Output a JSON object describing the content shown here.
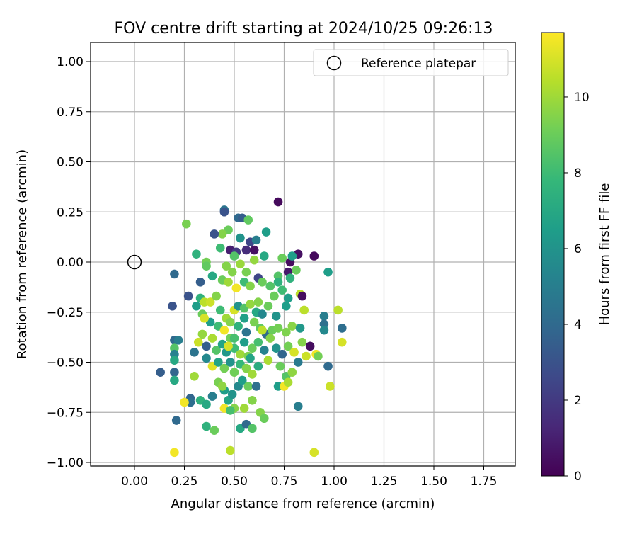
{
  "chart_data": {
    "type": "scatter",
    "title": "FOV centre drift starting at 2024/10/25 09:26:13",
    "xlabel": "Angular distance from reference (arcmin)",
    "ylabel": "Rotation from reference (arcmin)",
    "xlim": [
      -0.2,
      1.9
    ],
    "ylim": [
      -1.02,
      1.1
    ],
    "xticks": [
      "0.00",
      "0.25",
      "0.50",
      "0.75",
      "1.00",
      "1.25",
      "1.50",
      "1.75"
    ],
    "xtick_values": [
      0,
      0.25,
      0.5,
      0.75,
      1.0,
      1.25,
      1.5,
      1.75
    ],
    "yticks": [
      "1.00",
      "0.75",
      "0.50",
      "0.25",
      "0.00",
      "−0.25",
      "−0.50",
      "−0.75",
      "−1.00"
    ],
    "ytick_values": [
      1.0,
      0.75,
      0.5,
      0.25,
      0,
      -0.25,
      -0.5,
      -0.75,
      -1.0
    ],
    "grid": true,
    "legend": {
      "position": "top-right",
      "entries": [
        "Reference platepar"
      ]
    },
    "reference_point": {
      "x": 0,
      "y": 0,
      "label": "Reference platepar"
    },
    "colorbar": {
      "label": "Hours from first FF file",
      "range": [
        0,
        11.7
      ],
      "ticks": [
        "0",
        "2",
        "4",
        "6",
        "8",
        "10"
      ],
      "tick_values": [
        0,
        2,
        4,
        6,
        8,
        10
      ],
      "colormap": [
        "#440154",
        "#482878",
        "#3e4989",
        "#31688e",
        "#26828e",
        "#1f9e89",
        "#35b779",
        "#6ece58",
        "#b5de2b",
        "#fde725"
      ]
    },
    "points": [
      [
        0.72,
        0.3,
        0.3
      ],
      [
        0.45,
        0.26,
        4.5
      ],
      [
        0.45,
        0.25,
        3.0
      ],
      [
        0.52,
        0.22,
        4.0
      ],
      [
        0.54,
        0.22,
        3.5
      ],
      [
        0.57,
        0.21,
        8.8
      ],
      [
        0.26,
        0.19,
        9.3
      ],
      [
        0.47,
        0.16,
        9.0
      ],
      [
        0.44,
        0.14,
        9.5
      ],
      [
        0.66,
        0.15,
        6.5
      ],
      [
        0.4,
        0.14,
        3.0
      ],
      [
        0.53,
        0.12,
        6.0
      ],
      [
        0.58,
        0.1,
        2.5
      ],
      [
        0.61,
        0.11,
        5.0
      ],
      [
        0.43,
        0.07,
        8.0
      ],
      [
        0.48,
        0.06,
        1.0
      ],
      [
        0.51,
        0.05,
        2.0
      ],
      [
        0.56,
        0.06,
        1.5
      ],
      [
        0.6,
        0.06,
        0.5
      ],
      [
        0.31,
        0.04,
        7.5
      ],
      [
        0.5,
        0.03,
        8.5
      ],
      [
        0.65,
        0.03,
        7.0
      ],
      [
        0.74,
        0.02,
        9.0
      ],
      [
        0.78,
        0.0,
        0.4
      ],
      [
        0.77,
        -0.05,
        0.8
      ],
      [
        0.82,
        0.04,
        0.5
      ],
      [
        0.79,
        0.03,
        6.5
      ],
      [
        0.9,
        0.03,
        0.3
      ],
      [
        0.6,
        0.01,
        9.8
      ],
      [
        0.36,
        0.0,
        9.2
      ],
      [
        0.36,
        -0.02,
        8.8
      ],
      [
        0.46,
        -0.02,
        9.5
      ],
      [
        0.53,
        -0.01,
        9.9
      ],
      [
        0.56,
        -0.05,
        9.3
      ],
      [
        0.81,
        -0.04,
        9.0
      ],
      [
        0.78,
        -0.08,
        7.5
      ],
      [
        0.72,
        -0.07,
        8.5
      ],
      [
        0.97,
        -0.05,
        6.5
      ],
      [
        0.2,
        -0.06,
        4.0
      ],
      [
        0.33,
        -0.1,
        3.5
      ],
      [
        0.39,
        -0.07,
        7.0
      ],
      [
        0.44,
        -0.09,
        9.0
      ],
      [
        0.47,
        -0.1,
        10.0
      ],
      [
        0.49,
        -0.05,
        9.5
      ],
      [
        0.51,
        -0.13,
        11.5
      ],
      [
        0.55,
        -0.1,
        8.0
      ],
      [
        0.58,
        -0.12,
        9.5
      ],
      [
        0.62,
        -0.08,
        2.5
      ],
      [
        0.64,
        -0.1,
        9.0
      ],
      [
        0.68,
        -0.12,
        8.5
      ],
      [
        0.72,
        -0.1,
        7.5
      ],
      [
        0.74,
        -0.14,
        8.0
      ],
      [
        0.77,
        -0.18,
        6.5
      ],
      [
        0.83,
        -0.16,
        10.5
      ],
      [
        0.84,
        -0.17,
        0.4
      ],
      [
        0.19,
        -0.22,
        3.0
      ],
      [
        0.27,
        -0.17,
        3.0
      ],
      [
        0.31,
        -0.22,
        6.5
      ],
      [
        0.33,
        -0.18,
        7.5
      ],
      [
        0.35,
        -0.2,
        10.5
      ],
      [
        0.38,
        -0.2,
        10.8
      ],
      [
        0.41,
        -0.17,
        9.5
      ],
      [
        0.43,
        -0.24,
        8.0
      ],
      [
        0.46,
        -0.28,
        10.0
      ],
      [
        0.5,
        -0.24,
        11.0
      ],
      [
        0.52,
        -0.22,
        6.0
      ],
      [
        0.55,
        -0.23,
        8.5
      ],
      [
        0.58,
        -0.21,
        9.8
      ],
      [
        0.61,
        -0.25,
        7.0
      ],
      [
        0.64,
        -0.26,
        5.5
      ],
      [
        0.67,
        -0.22,
        9.0
      ],
      [
        0.71,
        -0.27,
        6.0
      ],
      [
        0.76,
        -0.22,
        6.5
      ],
      [
        0.85,
        -0.24,
        10.5
      ],
      [
        0.95,
        -0.27,
        5.0
      ],
      [
        1.02,
        -0.24,
        10.5
      ],
      [
        0.34,
        -0.26,
        9.0
      ],
      [
        0.38,
        -0.3,
        6.5
      ],
      [
        0.42,
        -0.32,
        8.0
      ],
      [
        0.45,
        -0.34,
        11.5
      ],
      [
        0.48,
        -0.3,
        9.5
      ],
      [
        0.52,
        -0.32,
        7.5
      ],
      [
        0.56,
        -0.35,
        4.5
      ],
      [
        0.6,
        -0.3,
        9.3
      ],
      [
        0.63,
        -0.33,
        8.8
      ],
      [
        0.66,
        -0.36,
        4.0
      ],
      [
        0.69,
        -0.34,
        9.0
      ],
      [
        0.72,
        -0.33,
        9.2
      ],
      [
        0.76,
        -0.35,
        9.4
      ],
      [
        0.79,
        -0.32,
        9.6
      ],
      [
        0.83,
        -0.33,
        6.2
      ],
      [
        0.95,
        -0.31,
        4.3
      ],
      [
        0.95,
        -0.34,
        5.5
      ],
      [
        1.04,
        -0.33,
        4.2
      ],
      [
        0.32,
        -0.4,
        10.8
      ],
      [
        0.34,
        -0.36,
        9.8
      ],
      [
        0.36,
        -0.42,
        3.5
      ],
      [
        0.39,
        -0.38,
        10.2
      ],
      [
        0.41,
        -0.44,
        8.5
      ],
      [
        0.44,
        -0.41,
        6.8
      ],
      [
        0.46,
        -0.45,
        6.2
      ],
      [
        0.48,
        -0.38,
        9.1
      ],
      [
        0.5,
        -0.43,
        8.0
      ],
      [
        0.53,
        -0.46,
        10.0
      ],
      [
        0.55,
        -0.4,
        6.5
      ],
      [
        0.57,
        -0.47,
        9.4
      ],
      [
        0.59,
        -0.43,
        9.0
      ],
      [
        0.62,
        -0.4,
        8.2
      ],
      [
        0.65,
        -0.44,
        5.2
      ],
      [
        0.68,
        -0.38,
        9.5
      ],
      [
        0.71,
        -0.43,
        6.0
      ],
      [
        0.74,
        -0.46,
        3.8
      ],
      [
        0.77,
        -0.42,
        9.2
      ],
      [
        0.8,
        -0.45,
        11.0
      ],
      [
        0.84,
        -0.4,
        9.5
      ],
      [
        0.88,
        -0.42,
        0.4
      ],
      [
        0.86,
        -0.47,
        10.8
      ],
      [
        0.91,
        -0.46,
        11.5
      ],
      [
        1.04,
        -0.4,
        11.0
      ],
      [
        0.2,
        -0.39,
        4.0
      ],
      [
        0.22,
        -0.39,
        5.0
      ],
      [
        0.2,
        -0.43,
        8.5
      ],
      [
        0.2,
        -0.46,
        5.2
      ],
      [
        0.2,
        -0.49,
        7.0
      ],
      [
        0.2,
        -0.55,
        3.8
      ],
      [
        0.13,
        -0.55,
        3.5
      ],
      [
        0.2,
        -0.59,
        7.0
      ],
      [
        0.3,
        -0.57,
        10.0
      ],
      [
        0.36,
        -0.48,
        5.5
      ],
      [
        0.39,
        -0.52,
        11.2
      ],
      [
        0.42,
        -0.5,
        6.8
      ],
      [
        0.45,
        -0.53,
        9.2
      ],
      [
        0.48,
        -0.5,
        6.0
      ],
      [
        0.5,
        -0.55,
        9.1
      ],
      [
        0.53,
        -0.51,
        7.8
      ],
      [
        0.56,
        -0.53,
        9.5
      ],
      [
        0.59,
        -0.56,
        10.0
      ],
      [
        0.62,
        -0.52,
        7.2
      ],
      [
        0.67,
        -0.49,
        10.2
      ],
      [
        0.73,
        -0.52,
        9.0
      ],
      [
        0.76,
        -0.57,
        8.5
      ],
      [
        0.79,
        -0.55,
        9.7
      ],
      [
        0.82,
        -0.5,
        4.8
      ],
      [
        0.97,
        -0.52,
        4.0
      ],
      [
        0.92,
        -0.47,
        9.2
      ],
      [
        0.28,
        -0.68,
        3.8
      ],
      [
        0.28,
        -0.7,
        4.2
      ],
      [
        0.25,
        -0.7,
        11.5
      ],
      [
        0.33,
        -0.69,
        7.5
      ],
      [
        0.36,
        -0.71,
        7.0
      ],
      [
        0.39,
        -0.67,
        5.0
      ],
      [
        0.42,
        -0.6,
        9.3
      ],
      [
        0.45,
        -0.64,
        6.5
      ],
      [
        0.47,
        -0.69,
        6.8
      ],
      [
        0.49,
        -0.66,
        6.0
      ],
      [
        0.52,
        -0.62,
        5.5
      ],
      [
        0.54,
        -0.59,
        6.5
      ],
      [
        0.57,
        -0.62,
        9.0
      ],
      [
        0.59,
        -0.69,
        9.5
      ],
      [
        0.61,
        -0.62,
        4.3
      ],
      [
        0.63,
        -0.75,
        9.5
      ],
      [
        0.65,
        -0.78,
        9.0
      ],
      [
        0.5,
        -0.73,
        9.5
      ],
      [
        0.55,
        -0.73,
        10.0
      ],
      [
        0.45,
        -0.73,
        11.5
      ],
      [
        0.48,
        -0.74,
        8.2
      ],
      [
        0.72,
        -0.62,
        6.5
      ],
      [
        0.75,
        -0.62,
        11.5
      ],
      [
        0.77,
        -0.6,
        10.2
      ],
      [
        0.98,
        -0.62,
        10.8
      ],
      [
        0.82,
        -0.72,
        5.0
      ],
      [
        0.21,
        -0.79,
        4.0
      ],
      [
        0.36,
        -0.82,
        7.5
      ],
      [
        0.4,
        -0.84,
        9.0
      ],
      [
        0.53,
        -0.83,
        7.0
      ],
      [
        0.56,
        -0.81,
        4.0
      ],
      [
        0.59,
        -0.83,
        8.5
      ],
      [
        0.48,
        -0.94,
        10.5
      ],
      [
        0.2,
        -0.95,
        11.5
      ],
      [
        0.9,
        -0.95,
        11.0
      ],
      [
        0.44,
        -0.62,
        9.7
      ],
      [
        0.3,
        -0.45,
        4.5
      ],
      [
        0.62,
        -0.2,
        9.5
      ],
      [
        0.7,
        -0.17,
        9.0
      ],
      [
        0.47,
        -0.42,
        11.0
      ],
      [
        0.55,
        -0.28,
        6.6
      ],
      [
        0.64,
        -0.34,
        10.5
      ],
      [
        0.5,
        -0.38,
        8.2
      ],
      [
        0.58,
        -0.48,
        6.8
      ],
      [
        0.35,
        -0.28,
        11.0
      ]
    ]
  }
}
